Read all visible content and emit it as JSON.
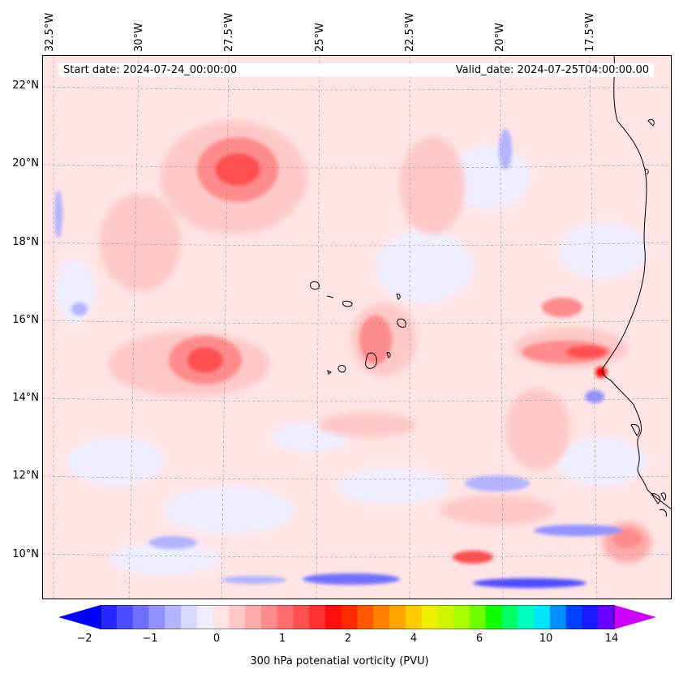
{
  "map": {
    "start_label": "Start date: 2024-07-24_00:00:00",
    "valid_label": "Valid_date: 2024-07-25T04:00:00.00",
    "longitude_labels": [
      "32.5°W",
      "30°W",
      "27.5°W",
      "25°W",
      "22.5°W",
      "20°W",
      "17.5°W"
    ],
    "latitude_labels": [
      "22°N",
      "20°N",
      "18°N",
      "16°N",
      "14°N",
      "12°N",
      "10°N"
    ],
    "field_name": "300 hPa potential vorticity",
    "features": [
      "Cape Verde islands",
      "West African coastline",
      "Senegal"
    ]
  },
  "colorbar": {
    "label": "300 hPa potenatial vorticity (PVU)",
    "tick_labels": [
      "−2",
      "−1",
      "0",
      "1",
      "2",
      "4",
      "6",
      "10",
      "14"
    ],
    "colors": [
      "#2626ff",
      "#4c4cff",
      "#6f6fff",
      "#9393ff",
      "#b4b4ff",
      "#d7d7ff",
      "#eeeeff",
      "#ffe2e2",
      "#ffc8c8",
      "#ffaaaa",
      "#ff8c8c",
      "#ff6e6e",
      "#ff5050",
      "#ff3030",
      "#ff0d0d",
      "#ff2a00",
      "#ff5a00",
      "#ff8200",
      "#ffa500",
      "#ffcc00",
      "#f2ee00",
      "#d0f500",
      "#a8ff00",
      "#6cff00",
      "#10ff00",
      "#00ff66",
      "#00ffbf",
      "#00e6ff",
      "#0090ff",
      "#0040ff",
      "#1a1aff",
      "#6a00ff"
    ],
    "under_color": "#0000ff",
    "over_color": "#cc00ff"
  }
}
